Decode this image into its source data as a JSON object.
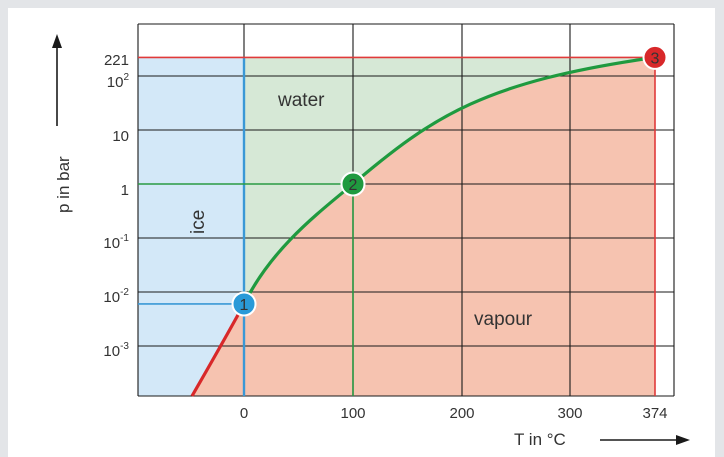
{
  "chart_data": {
    "type": "line",
    "title": "",
    "xlabel": "T in °C",
    "ylabel": "p in bar",
    "x_ticks": [
      "0",
      "100",
      "200",
      "300",
      "374"
    ],
    "y_ticks": [
      {
        "base": "221",
        "exp": ""
      },
      {
        "base": "10",
        "exp": "2"
      },
      {
        "base": "10",
        "exp": ""
      },
      {
        "base": "1",
        "exp": ""
      },
      {
        "base": "10",
        "exp": "-1"
      },
      {
        "base": "10",
        "exp": "-2"
      },
      {
        "base": "10",
        "exp": "-3"
      }
    ],
    "y_scale": "log",
    "grid": true,
    "regions": {
      "ice": {
        "label": "ice",
        "color": "#d3e8f8"
      },
      "water": {
        "label": "water",
        "color": "#d6e8d6"
      },
      "vapour": {
        "label": "vapour",
        "color": "#f6c3b0"
      }
    },
    "label_colors": {
      "ice": "#3a98d6",
      "water": "#2a9a43",
      "vapour": "#e03a3a"
    },
    "curves": {
      "vaporization": {
        "color": "#1f9a3f",
        "from_point": "1",
        "to_point": "3"
      },
      "sublimation": {
        "color": "#d8282a"
      }
    },
    "points": [
      {
        "label": "1",
        "T": 0.01,
        "p": 0.006,
        "color": "#2a9ad8"
      },
      {
        "label": "2",
        "T": 100,
        "p": 1,
        "color": "#1f9a3f"
      },
      {
        "label": "3",
        "T": 374,
        "p": 221,
        "color": "#d8282a"
      }
    ],
    "melting_line_T": 0,
    "colors": {
      "melting_line": "#3a98d6",
      "boiling_guide": "#2a9a43",
      "critical_guide": "#e03a3a",
      "grid": "#1a1a1a"
    }
  }
}
